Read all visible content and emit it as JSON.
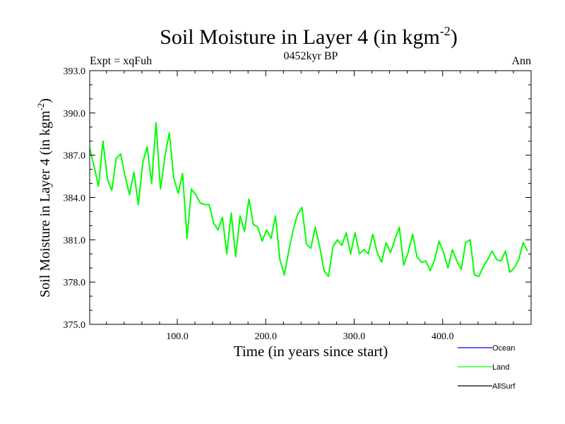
{
  "chart_data": {
    "type": "line",
    "title": "Soil Moisture in Layer 4 (in kgm",
    "title_exp": "-2",
    "title_close": ")",
    "subtitle": "0452kyr BP",
    "left_label": "Expt = xqFuh",
    "right_label": "Ann",
    "xlabel": "Time (in years since start)",
    "ylabel": "Soil Moisture in Layer 4 (in kgm",
    "ylabel_exp": "-2",
    "ylabel_close": ")",
    "xlim": [
      1,
      500
    ],
    "ylim": [
      375.0,
      393.0
    ],
    "x_ticks": [
      100,
      200,
      300,
      400
    ],
    "x_tick_labels": [
      "100.0",
      "200.0",
      "300.0",
      "400.0"
    ],
    "y_ticks": [
      375,
      378,
      381,
      384,
      387,
      390,
      393
    ],
    "y_tick_labels": [
      "375.0",
      "378.0",
      "381.0",
      "384.0",
      "387.0",
      "390.0",
      "393.0"
    ],
    "series": [
      {
        "name": "Ocean",
        "color": "#0000ff",
        "values": []
      },
      {
        "name": "Land",
        "color": "#00ff00",
        "x_start": 1,
        "x_step": 5,
        "values": [
          387.5,
          386.2,
          384.8,
          388.0,
          385.3,
          384.5,
          386.8,
          387.1,
          385.5,
          384.2,
          385.8,
          383.5,
          386.5,
          387.6,
          385.0,
          389.3,
          384.6,
          386.9,
          388.6,
          385.4,
          384.3,
          385.7,
          381.1,
          384.6,
          384.2,
          383.6,
          383.5,
          383.5,
          382.2,
          381.7,
          382.6,
          380.0,
          382.9,
          379.8,
          382.7,
          381.6,
          383.9,
          382.1,
          381.9,
          380.9,
          381.7,
          381.1,
          382.7,
          379.6,
          378.5,
          380.2,
          381.7,
          382.8,
          383.3,
          380.7,
          380.4,
          381.9,
          380.5,
          378.8,
          378.4,
          380.5,
          381.0,
          380.6,
          381.5,
          380.0,
          381.5,
          380.0,
          380.3,
          380.0,
          381.4,
          380.1,
          379.4,
          380.8,
          380.1,
          381.0,
          381.9,
          379.2,
          380.1,
          381.4,
          379.8,
          379.4,
          379.5,
          378.8,
          379.6,
          380.9,
          380.1,
          379.0,
          380.3,
          379.5,
          378.9,
          380.8,
          381.0,
          378.5,
          378.4,
          379.1,
          379.6,
          380.2,
          379.6,
          379.5,
          380.2,
          378.7,
          379.0,
          379.6,
          380.8,
          380.2
        ]
      },
      {
        "name": "AllSurf",
        "color": "#000000",
        "values": []
      }
    ],
    "legend": [
      "Ocean",
      "Land",
      "AllSurf"
    ],
    "legend_position": "bottom-right",
    "grid": false
  }
}
